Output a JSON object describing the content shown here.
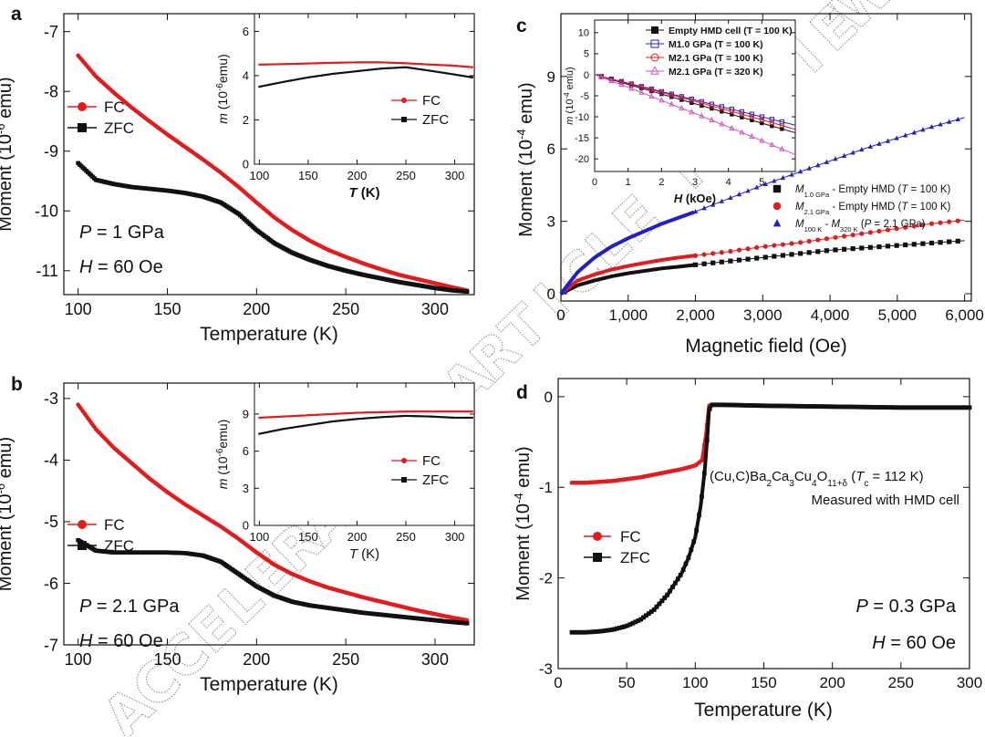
{
  "watermark": "ACCELERATED ARTICLE PREVIEW",
  "colors": {
    "red": "#e41a1c",
    "black": "#111111",
    "blue": "#1f1fcc",
    "magenta": "#cc55cc"
  },
  "chart_data": [
    {
      "id": "a",
      "panel_label": "a",
      "type": "scatter",
      "xlabel": "Temperature (K)",
      "ylabel_main": "Moment (10",
      "ylabel_exp": "-6",
      "ylabel_unit": " emu)",
      "xlim": [
        92,
        322
      ],
      "ylim": [
        -11.4,
        -6.7
      ],
      "xticks": [
        100,
        150,
        200,
        250,
        300
      ],
      "yticks": [
        -7,
        -8,
        -9,
        -10,
        -11
      ],
      "annotations": {
        "pressure": "P = 1 GPa",
        "field": "H = 60 Oe"
      },
      "legend": [
        {
          "label": "FC",
          "marker": "circle",
          "color": "red"
        },
        {
          "label": "ZFC",
          "marker": "square",
          "color": "black"
        }
      ],
      "series": [
        {
          "name": "FC",
          "color": "red",
          "marker": "circle",
          "x": [
            100,
            110,
            120,
            130,
            140,
            150,
            160,
            170,
            180,
            190,
            200,
            210,
            220,
            230,
            240,
            250,
            260,
            270,
            280,
            290,
            300,
            310,
            318
          ],
          "y": [
            -7.4,
            -7.75,
            -8.02,
            -8.27,
            -8.5,
            -8.72,
            -8.93,
            -9.14,
            -9.36,
            -9.6,
            -9.86,
            -10.11,
            -10.32,
            -10.5,
            -10.65,
            -10.77,
            -10.88,
            -10.98,
            -11.07,
            -11.14,
            -11.21,
            -11.28,
            -11.33
          ]
        },
        {
          "name": "ZFC",
          "color": "black",
          "marker": "square",
          "x": [
            100,
            110,
            120,
            130,
            140,
            150,
            160,
            170,
            180,
            190,
            200,
            210,
            220,
            230,
            240,
            250,
            260,
            270,
            280,
            290,
            300,
            310,
            318
          ],
          "y": [
            -9.2,
            -9.48,
            -9.55,
            -9.6,
            -9.63,
            -9.66,
            -9.7,
            -9.76,
            -9.86,
            -10.05,
            -10.32,
            -10.54,
            -10.7,
            -10.82,
            -10.92,
            -11.0,
            -11.07,
            -11.13,
            -11.19,
            -11.24,
            -11.29,
            -11.33,
            -11.35
          ]
        }
      ],
      "inset": {
        "xlabel": "T (K)",
        "ylabel_main": "m (10",
        "ylabel_exp": "-6",
        "ylabel_unit": "emu)",
        "xlim": [
          95,
          320
        ],
        "ylim": [
          0,
          6.8
        ],
        "xticks": [
          100,
          150,
          200,
          250,
          300
        ],
        "yticks": [
          0,
          2,
          4,
          6
        ],
        "legend": [
          {
            "label": "FC",
            "marker": "circle",
            "color": "red"
          },
          {
            "label": "ZFC",
            "marker": "square",
            "color": "black"
          }
        ],
        "series": [
          {
            "name": "FC",
            "color": "red",
            "x": [
              100,
              125,
              150,
              175,
              200,
              225,
              250,
              275,
              300,
              318
            ],
            "y": [
              4.5,
              4.52,
              4.55,
              4.58,
              4.6,
              4.6,
              4.56,
              4.5,
              4.45,
              4.38
            ]
          },
          {
            "name": "ZFC",
            "color": "black",
            "x": [
              100,
              125,
              150,
              175,
              200,
              225,
              250,
              275,
              300,
              318
            ],
            "y": [
              3.5,
              3.72,
              3.92,
              4.08,
              4.2,
              4.32,
              4.38,
              4.22,
              4.05,
              3.92
            ]
          }
        ]
      }
    },
    {
      "id": "b",
      "panel_label": "b",
      "type": "scatter",
      "xlabel": "Temperature (K)",
      "ylabel_main": "Moment (10",
      "ylabel_exp": "-6",
      "ylabel_unit": " emu)",
      "xlim": [
        92,
        322
      ],
      "ylim": [
        -7.0,
        -2.75
      ],
      "xticks": [
        100,
        150,
        200,
        250,
        300
      ],
      "yticks": [
        -3,
        -4,
        -5,
        -6,
        -7
      ],
      "annotations": {
        "pressure": "P = 2.1 GPa",
        "field": "H = 60 Oe"
      },
      "legend": [
        {
          "label": "FC",
          "marker": "circle",
          "color": "red"
        },
        {
          "label": "ZFC",
          "marker": "square",
          "color": "black"
        }
      ],
      "series": [
        {
          "name": "FC",
          "color": "red",
          "marker": "circle",
          "x": [
            100,
            110,
            120,
            130,
            140,
            150,
            160,
            170,
            180,
            190,
            200,
            210,
            220,
            230,
            240,
            250,
            260,
            270,
            280,
            290,
            300,
            310,
            318
          ],
          "y": [
            -3.1,
            -3.5,
            -3.8,
            -4.05,
            -4.3,
            -4.52,
            -4.72,
            -4.9,
            -5.08,
            -5.28,
            -5.5,
            -5.7,
            -5.85,
            -5.97,
            -6.07,
            -6.15,
            -6.23,
            -6.3,
            -6.37,
            -6.44,
            -6.5,
            -6.56,
            -6.6
          ]
        },
        {
          "name": "ZFC",
          "color": "black",
          "marker": "square",
          "x": [
            100,
            110,
            120,
            130,
            140,
            150,
            160,
            170,
            180,
            190,
            200,
            210,
            220,
            230,
            240,
            250,
            260,
            270,
            280,
            290,
            300,
            310,
            318
          ],
          "y": [
            -5.3,
            -5.47,
            -5.5,
            -5.5,
            -5.5,
            -5.5,
            -5.51,
            -5.55,
            -5.65,
            -5.85,
            -6.05,
            -6.2,
            -6.3,
            -6.36,
            -6.4,
            -6.44,
            -6.48,
            -6.51,
            -6.54,
            -6.57,
            -6.6,
            -6.63,
            -6.65
          ]
        }
      ],
      "inset": {
        "xlabel": "T (K)",
        "ylabel_main": "m (10",
        "ylabel_exp": "-6",
        "ylabel_unit": "emu)",
        "xlim": [
          95,
          320
        ],
        "ylim": [
          0,
          11.5
        ],
        "xticks": [
          100,
          150,
          200,
          250,
          300
        ],
        "yticks": [
          0,
          3,
          6,
          9
        ],
        "legend": [
          {
            "label": "FC",
            "marker": "circle",
            "color": "red"
          },
          {
            "label": "ZFC",
            "marker": "square",
            "color": "black"
          }
        ],
        "series": [
          {
            "name": "FC",
            "color": "red",
            "x": [
              100,
              125,
              150,
              175,
              200,
              225,
              250,
              275,
              300,
              318
            ],
            "y": [
              8.7,
              8.8,
              8.9,
              9.0,
              9.1,
              9.15,
              9.2,
              9.2,
              9.2,
              9.2
            ]
          },
          {
            "name": "ZFC",
            "color": "black",
            "x": [
              100,
              125,
              150,
              175,
              200,
              225,
              250,
              275,
              300,
              318
            ],
            "y": [
              7.4,
              7.8,
              8.1,
              8.4,
              8.6,
              8.75,
              8.85,
              8.8,
              8.7,
              8.7
            ]
          }
        ]
      }
    },
    {
      "id": "c",
      "panel_label": "c",
      "type": "scatter",
      "xlabel": "Magnetic field (Oe)",
      "ylabel_main": "Moment (10",
      "ylabel_exp": "-4",
      "ylabel_unit": " emu)",
      "xlim": [
        0,
        6100
      ],
      "ylim": [
        -0.3,
        11.6
      ],
      "xticks": [
        0,
        1000,
        2000,
        3000,
        4000,
        5000,
        6000
      ],
      "xtick_labels": [
        "0",
        "1,000",
        "2,000",
        "3,000",
        "4,000",
        "5,000",
        "6,000"
      ],
      "yticks": [
        0,
        3,
        6,
        9
      ],
      "legend": [
        {
          "label": "M",
          "sub": "1.0 GPa",
          "rest": " - Empty HMD (",
          "ital": "T",
          "tail": " = 100 K)",
          "marker": "square",
          "color": "black"
        },
        {
          "label": "M",
          "sub": "2.1 GPa",
          "rest": " - Empty HMD (",
          "ital": "T",
          "tail": " = 100 K)",
          "marker": "circle",
          "color": "red"
        },
        {
          "label": "M",
          "sub": "100 K",
          "rest": " - M",
          "sub2": "320 K",
          "ital": "P",
          "tail": " = 2.1 GPa)",
          "marker": "triangle",
          "color": "blue"
        }
      ],
      "series": [
        {
          "name": "M1.0GPa - Empty HMD",
          "color": "black",
          "marker": "square",
          "x": [
            0,
            250,
            500,
            750,
            1000,
            1250,
            1500,
            1750,
            2000,
            2500,
            3000,
            3500,
            4000,
            4500,
            5000,
            5500,
            6000
          ],
          "y": [
            0,
            0.35,
            0.55,
            0.72,
            0.85,
            0.95,
            1.05,
            1.12,
            1.2,
            1.35,
            1.5,
            1.65,
            1.8,
            1.9,
            2.0,
            2.1,
            2.2
          ]
        },
        {
          "name": "M2.1GPa - Empty HMD",
          "color": "red",
          "marker": "circle",
          "x": [
            0,
            250,
            500,
            750,
            1000,
            1250,
            1500,
            1750,
            2000,
            2500,
            3000,
            3500,
            4000,
            4500,
            5000,
            5500,
            6000
          ],
          "y": [
            0,
            0.55,
            0.8,
            1.0,
            1.15,
            1.28,
            1.4,
            1.5,
            1.58,
            1.75,
            1.95,
            2.1,
            2.3,
            2.5,
            2.7,
            2.9,
            3.05
          ]
        },
        {
          "name": "M100K - M320K",
          "color": "blue",
          "marker": "triangle",
          "x": [
            0,
            250,
            500,
            750,
            1000,
            1250,
            1500,
            1750,
            2000,
            2500,
            3000,
            3500,
            4000,
            4500,
            5000,
            5500,
            6000
          ],
          "y": [
            0,
            0.9,
            1.5,
            1.95,
            2.3,
            2.6,
            2.9,
            3.15,
            3.4,
            3.95,
            4.5,
            5.0,
            5.5,
            6.0,
            6.45,
            6.9,
            7.3
          ]
        }
      ],
      "inset": {
        "xlabel": "H (kOe)",
        "ylabel_main": "m (10",
        "ylabel_exp": "-4",
        "ylabel_unit": " emu)",
        "xlim": [
          0,
          6.0
        ],
        "ylim": [
          -23,
          13
        ],
        "xticks": [
          0,
          1,
          2,
          3,
          4,
          5
        ],
        "yticks": [
          10,
          5,
          0,
          -5,
          -10,
          -15,
          -20
        ],
        "legend": [
          {
            "label": "Empty HMD cell (T = 100 K)",
            "marker": "square-filled",
            "color": "black"
          },
          {
            "label": "M1.0 GPa (T = 100 K)",
            "marker": "square-open",
            "color": "blue"
          },
          {
            "label": "M2.1 GPa (T = 100 K)",
            "marker": "circle-open",
            "color": "red"
          },
          {
            "label": "M2.1 GPa (T = 320 K)",
            "marker": "triangle-open",
            "color": "magenta"
          }
        ],
        "series": [
          {
            "name": "Empty HMD cell",
            "color": "black",
            "x": [
              0,
              1,
              2,
              3,
              4,
              5,
              6
            ],
            "y": [
              0,
              -2.3,
              -4.6,
              -6.9,
              -9.2,
              -11.5,
              -13.8
            ]
          },
          {
            "name": "M1.0 GPa (100 K)",
            "color": "blue",
            "x": [
              0,
              1,
              2,
              3,
              4,
              5,
              6
            ],
            "y": [
              0,
              -2.0,
              -4.0,
              -6.0,
              -8.0,
              -10.0,
              -12.0
            ]
          },
          {
            "name": "M2.1 GPa (100 K)",
            "color": "red",
            "x": [
              0,
              1,
              2,
              3,
              4,
              5,
              6
            ],
            "y": [
              0,
              -2.1,
              -4.2,
              -6.3,
              -8.5,
              -10.7,
              -13.0
            ]
          },
          {
            "name": "M2.1 GPa (320 K)",
            "color": "magenta",
            "x": [
              0,
              1,
              2,
              3,
              4,
              5,
              6
            ],
            "y": [
              0,
              -3.0,
              -6.1,
              -9.2,
              -12.4,
              -15.7,
              -19.0
            ]
          }
        ]
      }
    },
    {
      "id": "d",
      "panel_label": "d",
      "type": "scatter",
      "xlabel": "Temperature (K)",
      "ylabel_main": "Moment (10",
      "ylabel_exp": "-4",
      "ylabel_unit": " emu)",
      "xlim": [
        0,
        300
      ],
      "ylim": [
        -3.0,
        0.2
      ],
      "xticks": [
        0,
        50,
        100,
        150,
        200,
        250,
        300
      ],
      "yticks": [
        0,
        -1,
        -2,
        -3
      ],
      "annotations": {
        "compound_pre": "(Cu,C)Ba",
        "compound_s1": "2",
        "compound_m1": "Ca",
        "compound_s2": "3",
        "compound_m2": "Cu",
        "compound_s3": "4",
        "compound_m3": "O",
        "compound_s4": "11+δ",
        "compound_post": " (T",
        "compound_s5": "c",
        "compound_tail": " = 112 K)",
        "measured": "Measured with HMD cell",
        "pressure": "P = 0.3 GPa",
        "field": "H = 60 Oe"
      },
      "legend": [
        {
          "label": "FC",
          "marker": "circle",
          "color": "red"
        },
        {
          "label": "ZFC",
          "marker": "square",
          "color": "black"
        }
      ],
      "series": [
        {
          "name": "FC",
          "color": "red",
          "marker": "circle",
          "x": [
            10,
            20,
            30,
            40,
            50,
            60,
            70,
            80,
            90,
            100,
            105,
            108,
            110,
            112,
            120,
            150,
            200,
            250,
            300
          ],
          "y": [
            -0.95,
            -0.95,
            -0.94,
            -0.93,
            -0.91,
            -0.89,
            -0.86,
            -0.83,
            -0.8,
            -0.76,
            -0.7,
            -0.4,
            -0.1,
            -0.09,
            -0.09,
            -0.1,
            -0.11,
            -0.12,
            -0.12
          ]
        },
        {
          "name": "ZFC",
          "color": "black",
          "marker": "square",
          "x": [
            10,
            20,
            30,
            40,
            50,
            60,
            70,
            80,
            90,
            95,
            100,
            104,
            107,
            109,
            110,
            112,
            120,
            150,
            200,
            250,
            300
          ],
          "y": [
            -2.6,
            -2.6,
            -2.59,
            -2.57,
            -2.53,
            -2.46,
            -2.35,
            -2.18,
            -1.95,
            -1.78,
            -1.55,
            -1.2,
            -0.8,
            -0.4,
            -0.15,
            -0.09,
            -0.09,
            -0.1,
            -0.11,
            -0.12,
            -0.12
          ]
        }
      ]
    }
  ]
}
